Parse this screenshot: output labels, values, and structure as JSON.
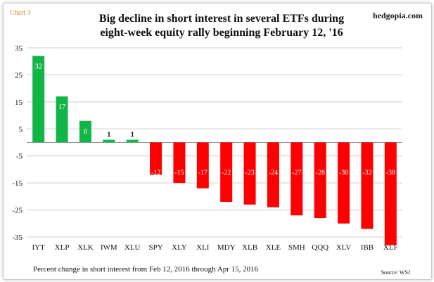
{
  "header": {
    "chart_label": "Chart 3",
    "brand": "hedgopia.com",
    "title_line1": "Big decline in short interest in several ETFs during",
    "title_line2": "eight-week equity rally beginning February 12, '16"
  },
  "footer": {
    "note": "Percent change in short interest from Feb 12, 2016 through Apr 15, 2016",
    "source": "Source: WSJ"
  },
  "colors": {
    "positive": "#11b548",
    "negative": "#ff0000",
    "gridline": "#cccccc",
    "axis": "#888888"
  },
  "chart_data": {
    "type": "bar",
    "title": "Big decline in short interest in several ETFs during eight-week equity rally beginning February 12, '16",
    "xlabel": "",
    "ylabel": "",
    "categories": [
      "IYT",
      "XLP",
      "XLK",
      "IWM",
      "XLU",
      "SPY",
      "XLY",
      "XLI",
      "MDY",
      "XLB",
      "XLE",
      "SMH",
      "QQQ",
      "XLV",
      "IBB",
      "XLF"
    ],
    "values": [
      32,
      17,
      8,
      1,
      1,
      -12,
      -15,
      -17,
      -22,
      -23,
      -24,
      -27,
      -28,
      -30,
      -32,
      -38
    ],
    "data_labels": [
      "32",
      "17",
      "8",
      "1",
      "1",
      "-12",
      "-15",
      "-17",
      "-22",
      "-23",
      "-24",
      "-27",
      "-28",
      "-30",
      "-32",
      "-38"
    ],
    "yticks": [
      35,
      25,
      15,
      5,
      -5,
      -15,
      -25,
      -35
    ],
    "ylim": [
      -35,
      35
    ],
    "grid": true,
    "legend": "none"
  }
}
